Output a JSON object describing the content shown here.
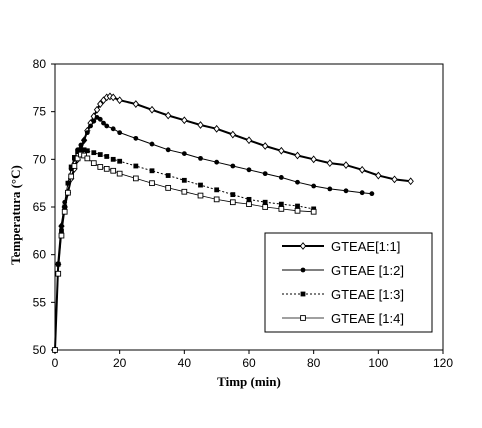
{
  "chart_data": {
    "type": "line",
    "title": "",
    "xlabel": "Timp (min)",
    "ylabel": "Temperatura    (°C)",
    "xlim": [
      0,
      120
    ],
    "ylim": [
      50,
      80
    ],
    "xticks": [
      0,
      20,
      40,
      60,
      80,
      100,
      120
    ],
    "yticks": [
      50,
      55,
      60,
      65,
      70,
      75,
      80
    ],
    "grid": false,
    "legend_position": "lower-right",
    "series": [
      {
        "name": "GTEAE[1:1]",
        "marker": "diamond-open",
        "line": "solid-bold",
        "points": [
          [
            0,
            50
          ],
          [
            1,
            59
          ],
          [
            2,
            63
          ],
          [
            3,
            65
          ],
          [
            4,
            66.5
          ],
          [
            5,
            68
          ],
          [
            6,
            69
          ],
          [
            7,
            70
          ],
          [
            8,
            71
          ],
          [
            9,
            72
          ],
          [
            10,
            73
          ],
          [
            11,
            73.8
          ],
          [
            12,
            74.5
          ],
          [
            13,
            75.2
          ],
          [
            14,
            75.8
          ],
          [
            15,
            76.2
          ],
          [
            16,
            76.5
          ],
          [
            17,
            76.6
          ],
          [
            18,
            76.5
          ],
          [
            20,
            76.2
          ],
          [
            25,
            75.8
          ],
          [
            30,
            75.2
          ],
          [
            35,
            74.6
          ],
          [
            40,
            74.1
          ],
          [
            45,
            73.6
          ],
          [
            50,
            73.2
          ],
          [
            55,
            72.6
          ],
          [
            60,
            72
          ],
          [
            65,
            71.4
          ],
          [
            70,
            70.9
          ],
          [
            75,
            70.4
          ],
          [
            80,
            70
          ],
          [
            85,
            69.6
          ],
          [
            90,
            69.4
          ],
          [
            95,
            68.9
          ],
          [
            100,
            68.3
          ],
          [
            105,
            67.9
          ],
          [
            110,
            67.7
          ]
        ]
      },
      {
        "name": "GTEAE [1:2]",
        "marker": "circle-filled",
        "line": "solid",
        "points": [
          [
            0,
            50
          ],
          [
            1,
            59
          ],
          [
            2,
            63
          ],
          [
            3,
            65.5
          ],
          [
            4,
            67.5
          ],
          [
            5,
            69
          ],
          [
            6,
            70
          ],
          [
            7,
            71
          ],
          [
            8,
            71.5
          ],
          [
            9,
            72
          ],
          [
            10,
            72.8
          ],
          [
            11,
            73.5
          ],
          [
            12,
            74
          ],
          [
            13,
            74.4
          ],
          [
            14,
            74.2
          ],
          [
            15,
            73.8
          ],
          [
            16,
            73.5
          ],
          [
            18,
            73.2
          ],
          [
            20,
            72.8
          ],
          [
            25,
            72.2
          ],
          [
            30,
            71.6
          ],
          [
            35,
            71
          ],
          [
            40,
            70.6
          ],
          [
            45,
            70.1
          ],
          [
            50,
            69.7
          ],
          [
            55,
            69.3
          ],
          [
            60,
            68.9
          ],
          [
            65,
            68.5
          ],
          [
            70,
            68.1
          ],
          [
            75,
            67.6
          ],
          [
            80,
            67.2
          ],
          [
            85,
            66.9
          ],
          [
            90,
            66.7
          ],
          [
            95,
            66.5
          ],
          [
            98,
            66.4
          ]
        ]
      },
      {
        "name": "GTEAE [1:3]",
        "marker": "square-filled",
        "line": "dotted",
        "points": [
          [
            0,
            50
          ],
          [
            1,
            59
          ],
          [
            2,
            62.5
          ],
          [
            3,
            65
          ],
          [
            4,
            67.5
          ],
          [
            5,
            69.2
          ],
          [
            6,
            70.2
          ],
          [
            7,
            70.8
          ],
          [
            8,
            71
          ],
          [
            9,
            71
          ],
          [
            10,
            70.9
          ],
          [
            12,
            70.7
          ],
          [
            14,
            70.5
          ],
          [
            16,
            70.3
          ],
          [
            18,
            70
          ],
          [
            20,
            69.8
          ],
          [
            25,
            69.3
          ],
          [
            30,
            68.8
          ],
          [
            35,
            68.3
          ],
          [
            40,
            67.8
          ],
          [
            45,
            67.3
          ],
          [
            50,
            66.8
          ],
          [
            55,
            66.3
          ],
          [
            60,
            65.8
          ],
          [
            65,
            65.5
          ],
          [
            70,
            65.3
          ],
          [
            75,
            65.1
          ],
          [
            80,
            64.8
          ]
        ]
      },
      {
        "name": "GTEAE [1:4]",
        "marker": "square-open",
        "line": "solid-thin",
        "points": [
          [
            0,
            50
          ],
          [
            1,
            58
          ],
          [
            2,
            62
          ],
          [
            3,
            64.5
          ],
          [
            4,
            66.5
          ],
          [
            5,
            68.2
          ],
          [
            6,
            69.3
          ],
          [
            7,
            70.1
          ],
          [
            8,
            70.5
          ],
          [
            9,
            70.4
          ],
          [
            10,
            70.1
          ],
          [
            12,
            69.6
          ],
          [
            14,
            69.2
          ],
          [
            16,
            69
          ],
          [
            18,
            68.8
          ],
          [
            20,
            68.5
          ],
          [
            25,
            68
          ],
          [
            30,
            67.5
          ],
          [
            35,
            67
          ],
          [
            40,
            66.6
          ],
          [
            45,
            66.2
          ],
          [
            50,
            65.8
          ],
          [
            55,
            65.5
          ],
          [
            60,
            65.3
          ],
          [
            65,
            65
          ],
          [
            70,
            64.8
          ],
          [
            75,
            64.6
          ],
          [
            80,
            64.5
          ]
        ]
      }
    ]
  }
}
